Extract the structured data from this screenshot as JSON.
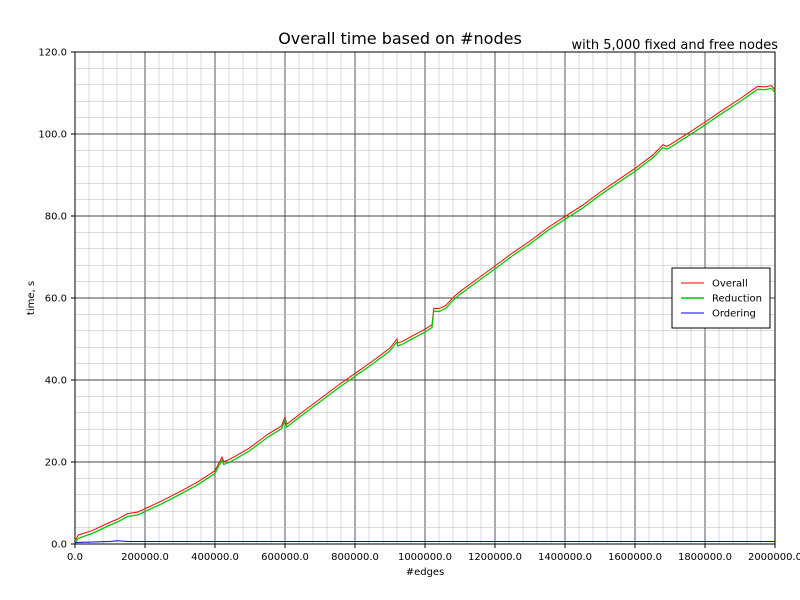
{
  "chart_data": {
    "type": "line",
    "title": "Overall time based on #nodes",
    "subtitle": "with 5,000 fixed and free nodes",
    "xlabel": "#edges",
    "ylabel": "time, s",
    "xlim": [
      0,
      2000000
    ],
    "ylim": [
      0,
      120
    ],
    "x_ticks": [
      0,
      200000,
      400000,
      600000,
      800000,
      1000000,
      1200000,
      1400000,
      1600000,
      1800000,
      2000000
    ],
    "x_tick_labels": [
      "0.0",
      "200000.0",
      "400000.0",
      "600000.0",
      "800000.0",
      "1000000.0",
      "1200000.0",
      "1400000.0",
      "1600000.0",
      "1800000.0",
      "2000000.0"
    ],
    "y_ticks": [
      0,
      20,
      40,
      60,
      80,
      100,
      120
    ],
    "y_tick_labels": [
      "0.0",
      "20.0",
      "40.0",
      "60.0",
      "80.0",
      "100.0",
      "120.0"
    ],
    "grid": true,
    "legend_position": "right",
    "x": [
      0,
      10000,
      50000,
      100000,
      120000,
      150000,
      180000,
      200000,
      250000,
      300000,
      350000,
      400000,
      420000,
      425000,
      440000,
      460000,
      500000,
      550000,
      590000,
      600000,
      605000,
      620000,
      650000,
      700000,
      750000,
      800000,
      850000,
      900000,
      920000,
      922000,
      935000,
      950000,
      1000000,
      1020000,
      1025000,
      1040000,
      1060000,
      1080000,
      1100000,
      1150000,
      1200000,
      1250000,
      1300000,
      1350000,
      1400000,
      1450000,
      1500000,
      1550000,
      1600000,
      1650000,
      1680000,
      1690000,
      1700000,
      1750000,
      1800000,
      1850000,
      1900000,
      1950000,
      1970000,
      1990000,
      2000000
    ],
    "series": [
      {
        "name": "Overall",
        "color": "#ff0000",
        "values": [
          0.8,
          2.2,
          3.3,
          5.3,
          6.0,
          7.4,
          7.8,
          8.6,
          10.6,
          12.8,
          15.1,
          17.9,
          21.2,
          20.1,
          20.6,
          21.5,
          23.5,
          26.7,
          28.8,
          31.0,
          29.2,
          30.2,
          32.2,
          35.4,
          38.6,
          41.6,
          44.6,
          47.8,
          50.0,
          49.0,
          49.4,
          50.1,
          52.4,
          53.5,
          57.5,
          57.4,
          58.2,
          60.1,
          61.6,
          64.7,
          67.8,
          71.0,
          73.9,
          77.1,
          79.9,
          82.6,
          85.8,
          88.7,
          91.6,
          94.8,
          97.4,
          97.0,
          97.4,
          100.1,
          102.9,
          105.8,
          108.6,
          111.6,
          111.5,
          111.8,
          110.8
        ]
      },
      {
        "name": "Reduction",
        "color": "#00cc00",
        "values": [
          0.3,
          1.4,
          2.6,
          4.6,
          5.3,
          6.7,
          7.1,
          7.9,
          9.9,
          12.1,
          14.4,
          17.2,
          20.5,
          19.4,
          19.9,
          20.8,
          22.8,
          26.0,
          28.1,
          30.3,
          28.5,
          29.5,
          31.5,
          34.7,
          37.9,
          40.9,
          43.9,
          47.1,
          49.3,
          48.3,
          48.7,
          49.4,
          51.7,
          52.8,
          56.8,
          56.7,
          57.5,
          59.4,
          60.9,
          64.0,
          67.1,
          70.3,
          73.2,
          76.4,
          79.2,
          81.9,
          85.1,
          88.0,
          90.9,
          94.1,
          96.7,
          96.3,
          96.7,
          99.4,
          102.2,
          105.1,
          107.9,
          110.9,
          110.8,
          111.1,
          110.1
        ]
      },
      {
        "name": "Ordering",
        "color": "#0000ff",
        "values": [
          0.3,
          0.4,
          0.5,
          0.6,
          0.8,
          0.6,
          0.6,
          0.6,
          0.6,
          0.6,
          0.6,
          0.6,
          0.6,
          0.6,
          0.6,
          0.6,
          0.6,
          0.6,
          0.6,
          0.6,
          0.6,
          0.6,
          0.6,
          0.6,
          0.6,
          0.6,
          0.6,
          0.6,
          0.6,
          0.6,
          0.6,
          0.6,
          0.6,
          0.6,
          0.6,
          0.6,
          0.6,
          0.6,
          0.6,
          0.6,
          0.6,
          0.6,
          0.6,
          0.6,
          0.6,
          0.6,
          0.6,
          0.6,
          0.6,
          0.6,
          0.6,
          0.6,
          0.6,
          0.6,
          0.6,
          0.6,
          0.6,
          0.6,
          0.6,
          0.6,
          0.6
        ]
      }
    ]
  }
}
